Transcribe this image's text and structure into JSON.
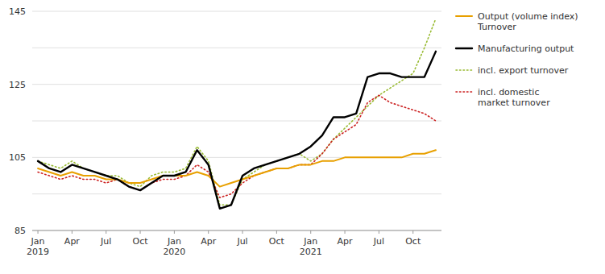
{
  "chart_data": {
    "type": "line",
    "categories": [
      "Jan\n2019",
      null,
      null,
      "Apr",
      null,
      null,
      "Jul",
      null,
      null,
      "Oct",
      null,
      null,
      "Jan\n2020",
      null,
      null,
      "Apr",
      null,
      null,
      "Jul",
      null,
      null,
      "Oct",
      null,
      null,
      "Jan\n2021",
      null,
      null,
      "Apr",
      null,
      null,
      "Jul",
      null,
      null,
      "Oct",
      null,
      null
    ],
    "series": [
      {
        "name": "Output (volume index)\nTurnover",
        "color": "#e8a000",
        "line_style": "solid",
        "values": [
          102,
          101,
          100,
          101,
          100,
          100,
          99,
          99,
          98,
          98,
          99,
          100,
          100,
          100,
          101,
          100,
          97,
          98,
          99,
          100,
          101,
          102,
          102,
          103,
          103,
          104,
          104,
          105,
          105,
          105,
          105,
          105,
          105,
          106,
          106,
          107
        ]
      },
      {
        "name": "Manufacturing output",
        "color": "#000000",
        "line_style": "solid",
        "values": [
          104,
          102,
          101,
          103,
          102,
          101,
          100,
          99,
          97,
          96,
          98,
          100,
          100,
          101,
          107,
          103,
          91,
          92,
          100,
          102,
          103,
          104,
          105,
          106,
          108,
          111,
          116,
          116,
          117,
          127,
          128,
          128,
          127,
          127,
          127,
          134
        ]
      },
      {
        "name": "incl. export turnover",
        "color": "#99bb33",
        "line_style": "dotted",
        "values": [
          104,
          103,
          102,
          104,
          102,
          101,
          100,
          100,
          98,
          97,
          100,
          101,
          101,
          102,
          108,
          104,
          92,
          92,
          99,
          101,
          103,
          104,
          105,
          106,
          104,
          106,
          110,
          113,
          116,
          119,
          122,
          124,
          126,
          128,
          135,
          143
        ]
      },
      {
        "name": "incl. domestic\nmarket turnover",
        "color": "#cc2222",
        "line_style": "dotted",
        "values": [
          101,
          100,
          99,
          100,
          99,
          99,
          98,
          99,
          97,
          96,
          98,
          99,
          99,
          100,
          103,
          101,
          94,
          95,
          98,
          100,
          101,
          102,
          102,
          103,
          103,
          106,
          110,
          112,
          114,
          120,
          122,
          120,
          119,
          118,
          117,
          115
        ]
      }
    ],
    "ylim": [
      85,
      145
    ],
    "yticks": [
      85,
      {
        "value": 95,
        "label": null
      },
      105,
      {
        "value": 115,
        "label": null
      },
      125,
      {
        "value": 135,
        "label": null
      },
      145
    ],
    "grid": true,
    "legend": "right"
  }
}
